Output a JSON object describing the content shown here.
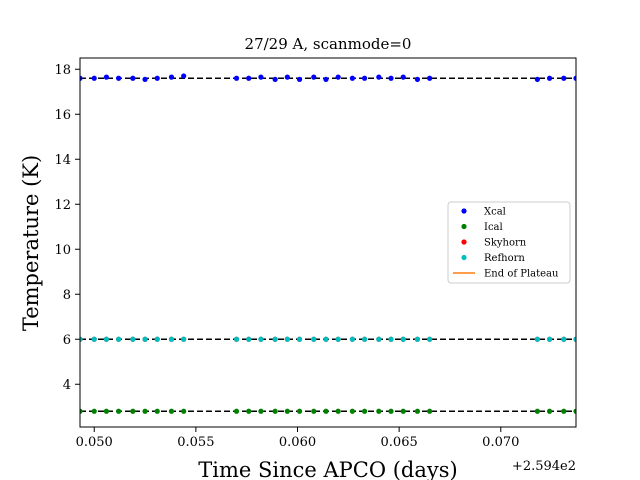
{
  "chart_data": {
    "type": "scatter",
    "title": "27/29 A, scanmode=0",
    "xlabel": "Time Since APCO (days)",
    "ylabel": "Temperature (K)",
    "x_offset_label": "+2.594e2",
    "xlim": [
      0.0493,
      0.0737
    ],
    "ylim": [
      2.1,
      18.5
    ],
    "x_ticks": [
      0.05,
      0.055,
      0.06,
      0.065,
      0.07
    ],
    "x_tick_labels": [
      "0.050",
      "0.055",
      "0.060",
      "0.065",
      "0.070"
    ],
    "y_ticks": [
      4,
      6,
      8,
      10,
      12,
      14,
      16,
      18
    ],
    "y_tick_labels": [
      "4",
      "6",
      "8",
      "10",
      "12",
      "14",
      "16",
      "18"
    ],
    "legend_position": "center-right",
    "legend": [
      {
        "label": "Xcal",
        "marker": "dot",
        "color": "#0000ff"
      },
      {
        "label": "Ical",
        "marker": "dot",
        "color": "#008000"
      },
      {
        "label": "Skyhorn",
        "marker": "dot",
        "color": "#ff0000"
      },
      {
        "label": "Refhorn",
        "marker": "dot",
        "color": "#00bfbf"
      },
      {
        "label": "End of Plateau",
        "marker": "line",
        "color": "#ff7f0e"
      }
    ],
    "reference_lines": [
      17.6,
      6.0,
      2.8
    ],
    "x": [
      0.0493,
      0.05,
      0.0506,
      0.0512,
      0.0519,
      0.0525,
      0.0531,
      0.0538,
      0.0544,
      0.057,
      0.0576,
      0.0582,
      0.0589,
      0.0595,
      0.0601,
      0.0608,
      0.0614,
      0.062,
      0.0627,
      0.0633,
      0.064,
      0.0646,
      0.0652,
      0.0659,
      0.0665,
      0.0718,
      0.0724,
      0.0731,
      0.0737
    ],
    "series": [
      {
        "name": "Xcal",
        "color": "#0000ff",
        "values": [
          17.6,
          17.6,
          17.65,
          17.6,
          17.6,
          17.55,
          17.6,
          17.65,
          17.7,
          17.6,
          17.6,
          17.65,
          17.55,
          17.65,
          17.55,
          17.65,
          17.55,
          17.65,
          17.6,
          17.6,
          17.65,
          17.6,
          17.65,
          17.55,
          17.6,
          17.55,
          17.6,
          17.6,
          17.6
        ]
      },
      {
        "name": "Ical",
        "color": "#008000",
        "values": [
          2.8,
          2.8,
          2.8,
          2.8,
          2.8,
          2.8,
          2.8,
          2.8,
          2.8,
          2.8,
          2.8,
          2.8,
          2.8,
          2.8,
          2.8,
          2.8,
          2.8,
          2.8,
          2.8,
          2.8,
          2.8,
          2.8,
          2.8,
          2.8,
          2.8,
          2.8,
          2.8,
          2.8,
          2.8
        ]
      },
      {
        "name": "Skyhorn",
        "color": "#ff0000",
        "values": [
          6.0,
          6.0,
          6.0,
          6.0,
          6.0,
          6.0,
          6.0,
          6.0,
          6.0,
          6.0,
          6.0,
          6.0,
          6.0,
          6.0,
          6.0,
          6.0,
          6.0,
          6.0,
          6.0,
          6.0,
          6.0,
          6.0,
          6.0,
          6.0,
          6.0,
          6.0,
          6.0,
          6.0,
          6.0
        ]
      },
      {
        "name": "Refhorn",
        "color": "#00bfbf",
        "values": [
          6.0,
          6.0,
          6.0,
          6.0,
          6.0,
          6.0,
          6.0,
          6.0,
          6.0,
          6.0,
          6.0,
          6.0,
          6.0,
          6.0,
          6.0,
          6.0,
          6.0,
          6.0,
          6.0,
          6.0,
          6.0,
          6.0,
          6.0,
          6.0,
          6.0,
          6.0,
          6.0,
          6.0,
          6.0
        ]
      }
    ]
  }
}
